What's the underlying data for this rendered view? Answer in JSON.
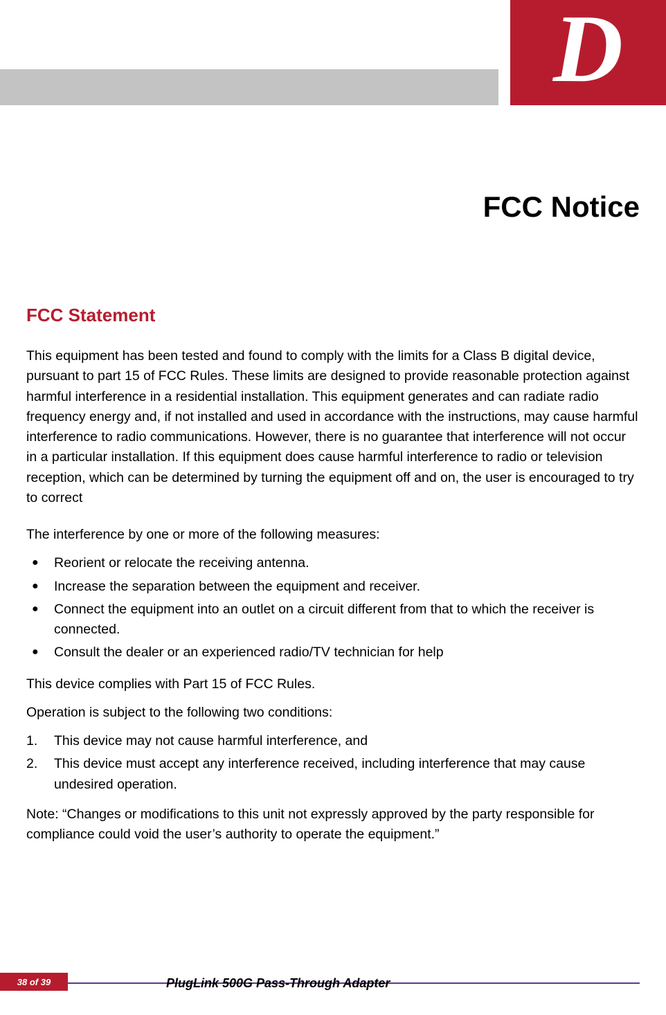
{
  "logo_letter": "D",
  "page_title": "FCC Notice",
  "section_heading": "FCC Statement",
  "para1": "This equipment has been tested and found to comply with the limits for a Class B digital device, pursuant to part 15 of FCC Rules. These limits are designed to provide reasonable protection against harmful interference in a residential installation. This equipment generates and can radiate radio frequency energy and, if not installed and used in accordance with the instructions, may cause harmful interference to radio communications. However, there is no guarantee that interference will not occur in a particular installation. If this equipment does cause harmful interference to radio or television reception, which can be determined by turning the equipment off and on, the user is encouraged to try to correct",
  "para2": "The interference by one or more of the following measures:",
  "bullets": [
    "Reorient or relocate the receiving antenna.",
    "Increase the separation between the equipment and receiver.",
    "Connect the equipment into an outlet on a circuit different from that to which the receiver is connected.",
    "Consult the dealer or an experienced radio/TV technician for help"
  ],
  "para3": "This device complies with Part 15 of FCC Rules.",
  "para4": "Operation is subject to the following two conditions:",
  "numbers": [
    "This device may not cause harmful interference, and",
    "This device must accept any interference received, including interference that may cause undesired operation."
  ],
  "note": "Note: “Changes or modifications to this unit not expressly approved by the party responsible for compliance could void the user’s authority to operate the equipment.”",
  "footer": {
    "page_info": "38 of 39",
    "title": "PlugLink 500G Pass-Through Adapter"
  }
}
